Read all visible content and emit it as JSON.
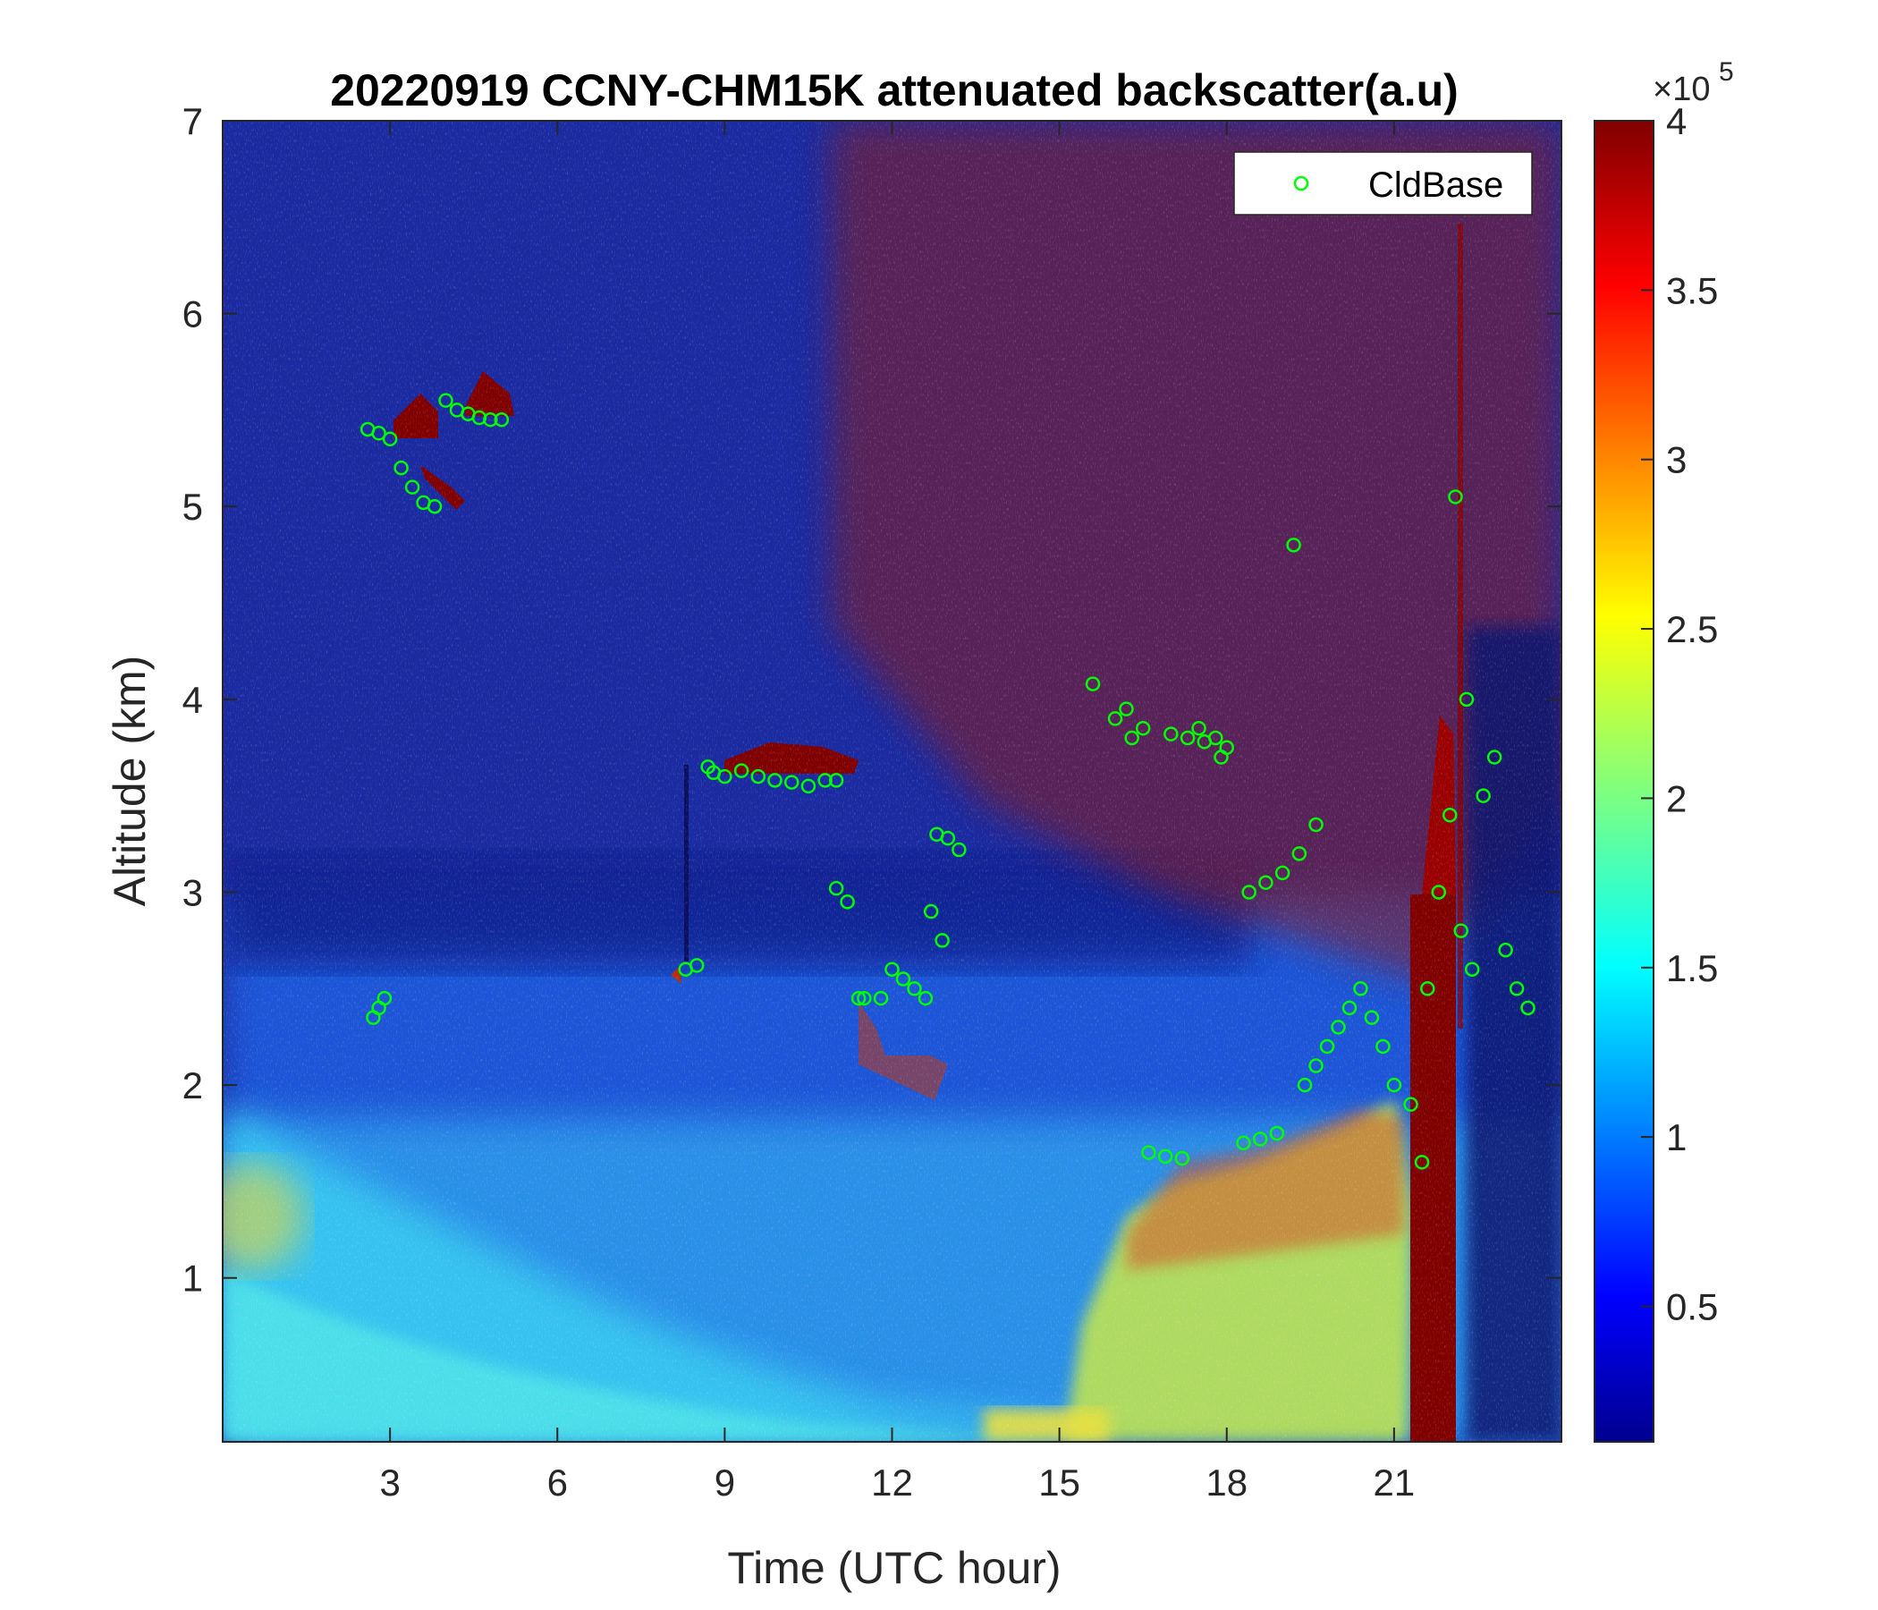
{
  "chart_data": {
    "type": "heatmap",
    "title": "20220919 CCNY-CHM15K attenuated backscatter(a.u)",
    "xlabel": "Time (UTC hour)",
    "ylabel": "Altitude (km)",
    "xlim": [
      0,
      24
    ],
    "ylim": [
      0.15,
      7
    ],
    "xticks": [
      3,
      6,
      9,
      12,
      15,
      18,
      21
    ],
    "xtick_labels": [
      "3",
      "6",
      "9",
      "12",
      "15",
      "18",
      "21"
    ],
    "yticks": [
      1,
      2,
      3,
      4,
      5,
      6,
      7
    ],
    "ytick_labels": [
      "1",
      "2",
      "3",
      "4",
      "5",
      "6",
      "7"
    ],
    "colorbar": {
      "colormap": "jet",
      "clim": [
        10000,
        400000
      ],
      "ticks": [
        0.5,
        1,
        1.5,
        2,
        2.5,
        3,
        3.5,
        4
      ],
      "tick_labels": [
        "0.5",
        "1",
        "1.5",
        "2",
        "2.5",
        "3",
        "3.5",
        "4"
      ],
      "exponent_base": "×10",
      "exponent_power": "5"
    },
    "legend": {
      "position": "top-right",
      "entries": [
        "CldBase"
      ]
    },
    "series": [
      {
        "name": "CldBase",
        "type": "scatter",
        "marker": "open-circle",
        "color": "#00ff00",
        "x": [
          2.6,
          2.8,
          3.0,
          3.2,
          3.4,
          3.6,
          3.8,
          4.0,
          4.2,
          4.4,
          4.6,
          4.8,
          5.0,
          2.7,
          2.8,
          2.9,
          8.3,
          8.5,
          8.7,
          8.8,
          9.0,
          9.3,
          9.6,
          9.9,
          10.2,
          10.5,
          10.8,
          11.0,
          11.0,
          11.2,
          11.4,
          11.5,
          11.8,
          12.0,
          12.2,
          12.4,
          12.6,
          12.8,
          13.0,
          13.2,
          12.7,
          12.9,
          15.6,
          16.0,
          16.3,
          16.6,
          16.9,
          17.2,
          17.5,
          17.8,
          18.0,
          18.3,
          18.6,
          18.9,
          16.2,
          16.5,
          17.0,
          17.3,
          17.6,
          17.9,
          18.4,
          18.7,
          19.0,
          19.3,
          19.6,
          19.2,
          19.4,
          19.6,
          19.8,
          20.0,
          20.2,
          20.4,
          20.6,
          20.8,
          21.0,
          21.3,
          21.5,
          21.6,
          21.8,
          22.0,
          22.2,
          22.4,
          22.6,
          22.8,
          23.0,
          23.2,
          23.4,
          22.1,
          22.3
        ],
        "y": [
          5.4,
          5.38,
          5.35,
          5.2,
          5.1,
          5.02,
          5.0,
          5.55,
          5.5,
          5.48,
          5.46,
          5.45,
          5.45,
          2.35,
          2.4,
          2.45,
          2.6,
          2.62,
          3.65,
          3.62,
          3.6,
          3.63,
          3.6,
          3.58,
          3.57,
          3.55,
          3.58,
          3.58,
          3.02,
          2.95,
          2.45,
          2.45,
          2.45,
          2.6,
          2.55,
          2.5,
          2.45,
          3.3,
          3.28,
          3.22,
          2.9,
          2.75,
          4.08,
          3.9,
          3.8,
          1.65,
          1.63,
          1.62,
          3.85,
          3.8,
          3.75,
          1.7,
          1.72,
          1.75,
          3.95,
          3.85,
          3.82,
          3.8,
          3.78,
          3.7,
          3.0,
          3.05,
          3.1,
          3.2,
          3.35,
          4.8,
          2.0,
          2.1,
          2.2,
          2.3,
          2.4,
          2.5,
          2.35,
          2.2,
          2.0,
          1.9,
          1.6,
          2.5,
          3.0,
          3.4,
          2.8,
          2.6,
          3.5,
          3.7,
          2.7,
          2.5,
          2.4,
          5.05,
          4.0
        ]
      }
    ]
  }
}
